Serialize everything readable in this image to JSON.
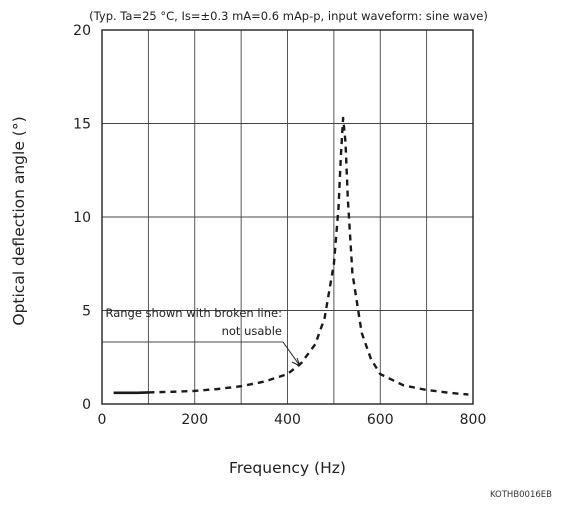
{
  "chart_data": {
    "type": "line",
    "condition_note": "(Typ. Ta=25 °C, Is=±0.3 mA=0.6 mAp-p, input waveform: sine wave)",
    "xlabel": "Frequency (Hz)",
    "ylabel": "Optical deflection angle (°)",
    "xlim": [
      0,
      800
    ],
    "ylim": [
      0,
      20
    ],
    "xticks": [
      0,
      200,
      400,
      600,
      800
    ],
    "yticks": [
      0,
      5,
      10,
      15,
      20
    ],
    "grid": true,
    "series": [
      {
        "line_style": "solid",
        "x": [
          25,
          50,
          75,
          100
        ],
        "y": [
          0.6,
          0.6,
          0.6,
          0.62
        ]
      },
      {
        "line_style": "dashed",
        "x": [
          100,
          150,
          200,
          250,
          300,
          350,
          400,
          430,
          460,
          480,
          500,
          510,
          515,
          520,
          525,
          530,
          540,
          560,
          580,
          600,
          650,
          700,
          750,
          790
        ],
        "y": [
          0.62,
          0.65,
          0.7,
          0.8,
          0.95,
          1.2,
          1.6,
          2.2,
          3.2,
          4.6,
          7.5,
          10.5,
          13.2,
          15.3,
          14.0,
          11.0,
          7.0,
          3.8,
          2.4,
          1.6,
          1.0,
          0.75,
          0.6,
          0.5
        ]
      }
    ],
    "annotation": {
      "line1": "Range shown with broken line:",
      "line2": "not usable"
    },
    "figure_code": "KOTHB0016EB"
  }
}
